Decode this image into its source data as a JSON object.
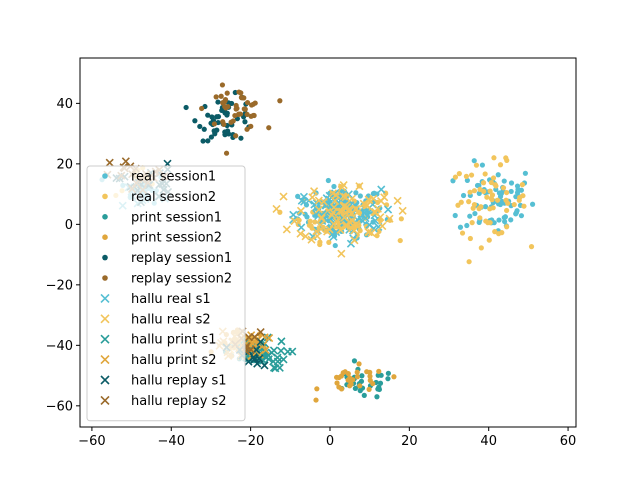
{
  "chart_data": {
    "type": "scatter",
    "title": "",
    "xlabel": "",
    "ylabel": "",
    "xlim": [
      -63,
      62
    ],
    "ylim": [
      -67,
      55
    ],
    "xticks": [
      -60,
      -40,
      -20,
      0,
      20,
      40,
      60
    ],
    "yticks": [
      -60,
      -40,
      -20,
      0,
      20,
      40
    ],
    "grid": false,
    "legend_position": "center-left",
    "series": [
      {
        "name": "real session1",
        "marker": "dot",
        "color": "#56bfd3",
        "clusters": [
          {
            "cx": 3,
            "cy": 4,
            "sx": 9,
            "sy": 7,
            "n": 90
          },
          {
            "cx": 42,
            "cy": 8,
            "sx": 8,
            "sy": 10,
            "n": 70
          },
          {
            "cx": -47,
            "cy": 12,
            "sx": 5,
            "sy": 4,
            "n": 20
          }
        ]
      },
      {
        "name": "real session2",
        "marker": "dot",
        "color": "#f2c55c",
        "clusters": [
          {
            "cx": 3,
            "cy": 3,
            "sx": 9,
            "sy": 7,
            "n": 80
          },
          {
            "cx": 40,
            "cy": 8,
            "sx": 8,
            "sy": 10,
            "n": 60
          },
          {
            "cx": -48,
            "cy": 14,
            "sx": 5,
            "sy": 4,
            "n": 15
          }
        ]
      },
      {
        "name": "print session1",
        "marker": "dot",
        "color": "#2a9d9a",
        "clusters": [
          {
            "cx": -20,
            "cy": -42,
            "sx": 5,
            "sy": 4,
            "n": 30
          },
          {
            "cx": 8,
            "cy": -53,
            "sx": 7,
            "sy": 4,
            "n": 30
          }
        ]
      },
      {
        "name": "print session2",
        "marker": "dot",
        "color": "#e0a63c",
        "clusters": [
          {
            "cx": -22,
            "cy": -40,
            "sx": 5,
            "sy": 4,
            "n": 30
          },
          {
            "cx": 6,
            "cy": -52,
            "sx": 7,
            "sy": 4,
            "n": 30
          }
        ]
      },
      {
        "name": "replay session1",
        "marker": "dot",
        "color": "#0b5b66",
        "clusters": [
          {
            "cx": -26,
            "cy": 35,
            "sx": 6,
            "sy": 6,
            "n": 50
          }
        ]
      },
      {
        "name": "replay session2",
        "marker": "dot",
        "color": "#9a6a2a",
        "clusters": [
          {
            "cx": -24,
            "cy": 38,
            "sx": 6,
            "sy": 6,
            "n": 45
          }
        ]
      },
      {
        "name": "hallu real s1",
        "marker": "x",
        "color": "#56bfd3",
        "clusters": [
          {
            "cx": 2,
            "cy": 3,
            "sx": 9,
            "sy": 7,
            "n": 90
          },
          {
            "cx": -48,
            "cy": 10,
            "sx": 5,
            "sy": 4,
            "n": 15
          }
        ]
      },
      {
        "name": "hallu real s2",
        "marker": "x",
        "color": "#f2c55c",
        "clusters": [
          {
            "cx": 4,
            "cy": 4,
            "sx": 10,
            "sy": 8,
            "n": 80
          },
          {
            "cx": -22,
            "cy": -40,
            "sx": 5,
            "sy": 4,
            "n": 15
          }
        ]
      },
      {
        "name": "hallu print s1",
        "marker": "x",
        "color": "#2a9d9a",
        "clusters": [
          {
            "cx": -18,
            "cy": -43,
            "sx": 6,
            "sy": 4,
            "n": 35
          }
        ]
      },
      {
        "name": "hallu print s2",
        "marker": "x",
        "color": "#e0a63c",
        "clusters": [
          {
            "cx": -22,
            "cy": -40,
            "sx": 5,
            "sy": 4,
            "n": 35
          }
        ]
      },
      {
        "name": "hallu replay s1",
        "marker": "x",
        "color": "#0b5b66",
        "clusters": [
          {
            "cx": -46,
            "cy": 14,
            "sx": 6,
            "sy": 5,
            "n": 20
          },
          {
            "cx": -20,
            "cy": -44,
            "sx": 5,
            "sy": 4,
            "n": 15
          }
        ]
      },
      {
        "name": "hallu replay s2",
        "marker": "x",
        "color": "#9a6a2a",
        "clusters": [
          {
            "cx": -48,
            "cy": 16,
            "sx": 6,
            "sy": 5,
            "n": 20
          },
          {
            "cx": -20,
            "cy": -40,
            "sx": 5,
            "sy": 4,
            "n": 10
          }
        ]
      }
    ]
  }
}
